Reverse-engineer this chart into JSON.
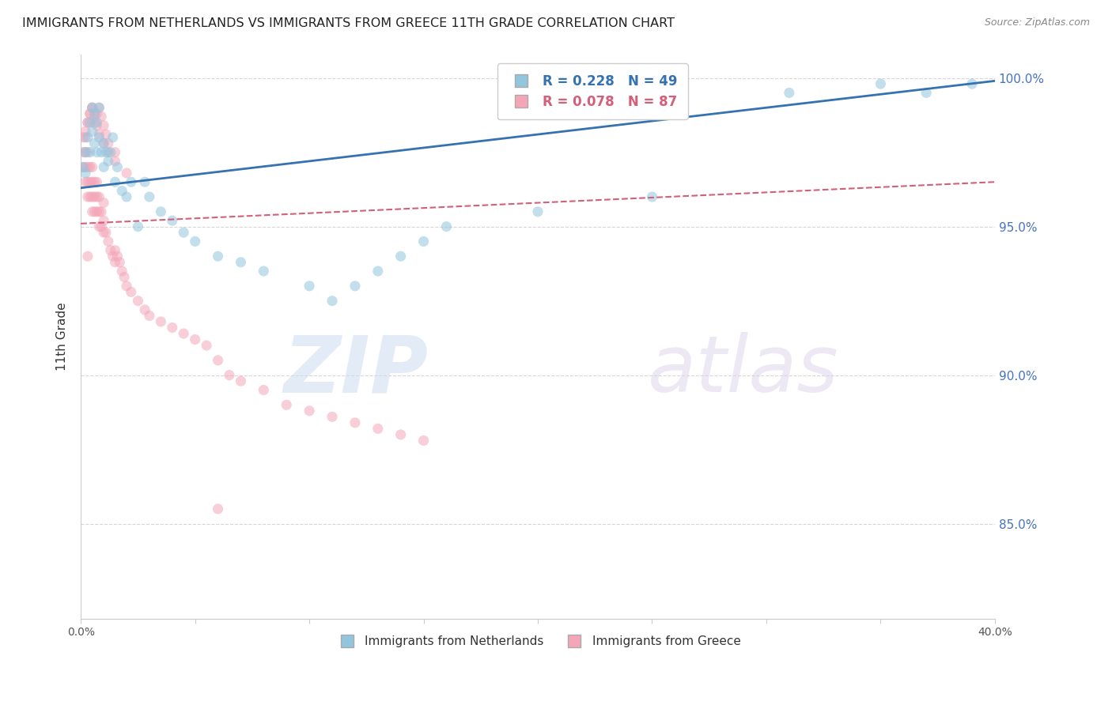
{
  "title": "IMMIGRANTS FROM NETHERLANDS VS IMMIGRANTS FROM GREECE 11TH GRADE CORRELATION CHART",
  "source": "Source: ZipAtlas.com",
  "ylabel": "11th Grade",
  "xlim": [
    0.0,
    0.4
  ],
  "ylim": [
    0.818,
    1.008
  ],
  "xticks": [
    0.0,
    0.05,
    0.1,
    0.15,
    0.2,
    0.25,
    0.3,
    0.35,
    0.4
  ],
  "xticklabels": [
    "0.0%",
    "",
    "",
    "",
    "",
    "",
    "",
    "",
    "40.0%"
  ],
  "ytick_positions": [
    0.85,
    0.9,
    0.95,
    1.0
  ],
  "ytick_labels": [
    "85.0%",
    "90.0%",
    "95.0%",
    "100.0%"
  ],
  "netherlands_color": "#92c5de",
  "greece_color": "#f4a6b8",
  "netherlands_line_color": "#3572b0",
  "greece_line_color": "#d45f7a",
  "watermark_zip": "ZIP",
  "watermark_atlas": "atlas",
  "nl_legend": "R = 0.228   N = 49",
  "gr_legend": "R = 0.078   N = 87",
  "nl_bottom_legend": "Immigrants from Netherlands",
  "gr_bottom_legend": "Immigrants from Greece",
  "netherlands_x": [
    0.001,
    0.002,
    0.002,
    0.003,
    0.004,
    0.004,
    0.005,
    0.005,
    0.006,
    0.006,
    0.007,
    0.007,
    0.008,
    0.008,
    0.009,
    0.01,
    0.01,
    0.011,
    0.012,
    0.013,
    0.014,
    0.015,
    0.016,
    0.018,
    0.02,
    0.022,
    0.025,
    0.028,
    0.03,
    0.035,
    0.04,
    0.045,
    0.05,
    0.06,
    0.07,
    0.08,
    0.1,
    0.11,
    0.12,
    0.13,
    0.14,
    0.15,
    0.16,
    0.2,
    0.25,
    0.31,
    0.35,
    0.37,
    0.39
  ],
  "netherlands_y": [
    0.97,
    0.975,
    0.968,
    0.98,
    0.975,
    0.985,
    0.982,
    0.99,
    0.988,
    0.978,
    0.975,
    0.985,
    0.98,
    0.99,
    0.975,
    0.97,
    0.978,
    0.975,
    0.972,
    0.975,
    0.98,
    0.965,
    0.97,
    0.962,
    0.96,
    0.965,
    0.95,
    0.965,
    0.96,
    0.955,
    0.952,
    0.948,
    0.945,
    0.94,
    0.938,
    0.935,
    0.93,
    0.925,
    0.93,
    0.935,
    0.94,
    0.945,
    0.95,
    0.955,
    0.96,
    0.995,
    0.998,
    0.995,
    0.998
  ],
  "greece_x": [
    0.001,
    0.001,
    0.001,
    0.002,
    0.002,
    0.002,
    0.002,
    0.003,
    0.003,
    0.003,
    0.003,
    0.004,
    0.004,
    0.004,
    0.005,
    0.005,
    0.005,
    0.005,
    0.006,
    0.006,
    0.006,
    0.007,
    0.007,
    0.007,
    0.008,
    0.008,
    0.008,
    0.009,
    0.009,
    0.01,
    0.01,
    0.01,
    0.011,
    0.012,
    0.013,
    0.014,
    0.015,
    0.015,
    0.016,
    0.017,
    0.018,
    0.019,
    0.02,
    0.022,
    0.025,
    0.028,
    0.03,
    0.035,
    0.04,
    0.045,
    0.05,
    0.055,
    0.06,
    0.065,
    0.07,
    0.08,
    0.09,
    0.1,
    0.11,
    0.12,
    0.13,
    0.14,
    0.15,
    0.003,
    0.004,
    0.005,
    0.006,
    0.007,
    0.008,
    0.01,
    0.012,
    0.015,
    0.02,
    0.002,
    0.003,
    0.004,
    0.005,
    0.006,
    0.007,
    0.008,
    0.009,
    0.01,
    0.011,
    0.012,
    0.015,
    0.003,
    0.06
  ],
  "greece_y": [
    0.97,
    0.975,
    0.98,
    0.965,
    0.97,
    0.975,
    0.98,
    0.96,
    0.965,
    0.97,
    0.975,
    0.96,
    0.965,
    0.97,
    0.955,
    0.96,
    0.965,
    0.97,
    0.955,
    0.96,
    0.965,
    0.955,
    0.96,
    0.965,
    0.95,
    0.955,
    0.96,
    0.95,
    0.955,
    0.948,
    0.952,
    0.958,
    0.948,
    0.945,
    0.942,
    0.94,
    0.938,
    0.942,
    0.94,
    0.938,
    0.935,
    0.933,
    0.93,
    0.928,
    0.925,
    0.922,
    0.92,
    0.918,
    0.916,
    0.914,
    0.912,
    0.91,
    0.905,
    0.9,
    0.898,
    0.895,
    0.89,
    0.888,
    0.886,
    0.884,
    0.882,
    0.88,
    0.878,
    0.985,
    0.988,
    0.99,
    0.987,
    0.984,
    0.981,
    0.978,
    0.975,
    0.972,
    0.968,
    0.982,
    0.985,
    0.988,
    0.99,
    0.985,
    0.988,
    0.99,
    0.987,
    0.984,
    0.981,
    0.978,
    0.975,
    0.94,
    0.855
  ]
}
